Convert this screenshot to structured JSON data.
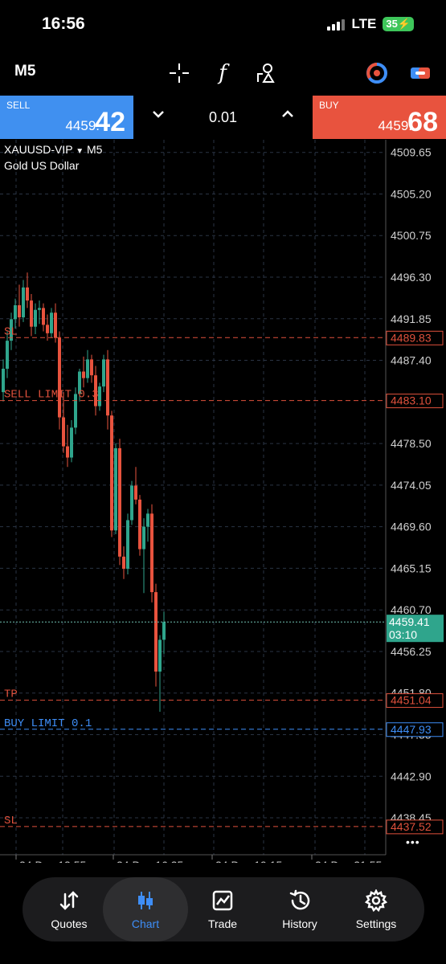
{
  "status": {
    "time": "16:56",
    "network": "LTE",
    "battery": "35"
  },
  "toolbar": {
    "timeframe": "M5"
  },
  "trade": {
    "sell_label": "SELL",
    "sell_price_prefix": "4459.",
    "sell_price_big": "42",
    "buy_label": "BUY",
    "buy_price_prefix": "4459.",
    "buy_price_big": "68",
    "lot": "0.01"
  },
  "chart_data": {
    "type": "candlestick",
    "symbol": "XAUUSD-VIP",
    "timeframe": "M5",
    "description": "Gold US Dollar",
    "ylim": [
      4434.5,
      4511.0
    ],
    "price_ticks": [
      "4509.65",
      "4505.20",
      "4500.75",
      "4496.30",
      "4491.85",
      "4487.40",
      "4478.50",
      "4474.05",
      "4469.60",
      "4465.15",
      "4460.70",
      "4456.25",
      "4451.80",
      "4447.35",
      "4442.90",
      "4438.45"
    ],
    "time_labels": [
      "24 Dec 13:55",
      "24 Dec 16:35",
      "24 Dec 19:15",
      "24 Dec 21:55"
    ],
    "levels": [
      {
        "label": "SL",
        "price": 4489.83,
        "price_label": "4489.83",
        "color": "#e0513c",
        "style": "dashed"
      },
      {
        "label": "SELL LIMIT 0.3",
        "price": 4483.1,
        "price_label": "4483.10",
        "color": "#e0513c",
        "style": "dashed"
      },
      {
        "label": "TP",
        "price": 4451.04,
        "price_label": "4451.04",
        "color": "#e0513c",
        "style": "dashed"
      },
      {
        "label": "BUY LIMIT 0.1",
        "price": 4447.93,
        "price_label": "4447.93",
        "color": "#3e8ef7",
        "style": "dashed"
      },
      {
        "label": "SL",
        "price": 4437.52,
        "price_label": "4437.52",
        "color": "#e0513c",
        "style": "dashed"
      }
    ],
    "current_price": 4459.41,
    "current_price_label": "4459.41",
    "countdown": "03:10",
    "up_color": "#2fa58c",
    "down_color": "#e8533e",
    "candles": [
      [
        4484.0,
        4487.5,
        4483.0,
        4486.5
      ],
      [
        4486.5,
        4490.5,
        4485.5,
        4489.5
      ],
      [
        4489.5,
        4492.5,
        4488.5,
        4491.8
      ],
      [
        4491.8,
        4494.0,
        4490.8,
        4493.3
      ],
      [
        4493.3,
        4495.5,
        4491.0,
        4492.0
      ],
      [
        4492.0,
        4496.0,
        4491.5,
        4495.2
      ],
      [
        4495.2,
        4496.8,
        4493.0,
        4493.8
      ],
      [
        4493.8,
        4494.5,
        4490.0,
        4491.0
      ],
      [
        4491.0,
        4493.5,
        4490.2,
        4492.8
      ],
      [
        4492.8,
        4493.8,
        4491.3,
        4493.0
      ],
      [
        4493.0,
        4493.5,
        4490.5,
        4491.2
      ],
      [
        4491.2,
        4492.3,
        4489.5,
        4490.3
      ],
      [
        4490.3,
        4493.0,
        4489.8,
        4492.5
      ],
      [
        4492.5,
        4493.5,
        4489.3,
        4489.8
      ],
      [
        4489.8,
        4490.5,
        4480.0,
        4481.3
      ],
      [
        4481.3,
        4484.0,
        4477.5,
        4478.2
      ],
      [
        4478.2,
        4480.5,
        4476.0,
        4477.0
      ],
      [
        4477.0,
        4481.0,
        4476.5,
        4480.2
      ],
      [
        4480.2,
        4484.5,
        4479.5,
        4483.8
      ],
      [
        4483.8,
        4486.5,
        4483.0,
        4486.2
      ],
      [
        4486.2,
        4487.8,
        4484.5,
        4485.5
      ],
      [
        4485.5,
        4488.5,
        4485.0,
        4487.5
      ],
      [
        4487.5,
        4488.0,
        4485.0,
        4485.8
      ],
      [
        4485.8,
        4486.8,
        4481.5,
        4482.5
      ],
      [
        4482.5,
        4485.0,
        4482.0,
        4484.6
      ],
      [
        4484.6,
        4488.0,
        4484.0,
        4487.5
      ],
      [
        4487.5,
        4488.5,
        4480.0,
        4481.5
      ],
      [
        4481.5,
        4482.0,
        4468.5,
        4469.2
      ],
      [
        4469.2,
        4478.5,
        4468.8,
        4478.0
      ],
      [
        4478.0,
        4479.0,
        4465.5,
        4466.4
      ],
      [
        4466.4,
        4467.5,
        4464.0,
        4465.1
      ],
      [
        4465.1,
        4471.0,
        4464.5,
        4470.3
      ],
      [
        4470.3,
        4474.5,
        4469.8,
        4474.0
      ],
      [
        4474.0,
        4476.0,
        4472.0,
        4472.5
      ],
      [
        4472.5,
        4473.0,
        4466.5,
        4467.2
      ],
      [
        4467.2,
        4470.5,
        4462.5,
        4469.6
      ],
      [
        4469.6,
        4471.5,
        4468.0,
        4471.0
      ],
      [
        4471.0,
        4472.0,
        4461.5,
        4462.6
      ],
      [
        4462.6,
        4463.5,
        4452.5,
        4454.1
      ],
      [
        4454.1,
        4458.0,
        4449.8,
        4457.5
      ],
      [
        4457.5,
        4460.5,
        4456.0,
        4459.4
      ]
    ]
  },
  "nav": {
    "items": [
      {
        "label": "Quotes"
      },
      {
        "label": "Chart"
      },
      {
        "label": "Trade"
      },
      {
        "label": "History"
      },
      {
        "label": "Settings"
      }
    ]
  },
  "more_label": "•••"
}
